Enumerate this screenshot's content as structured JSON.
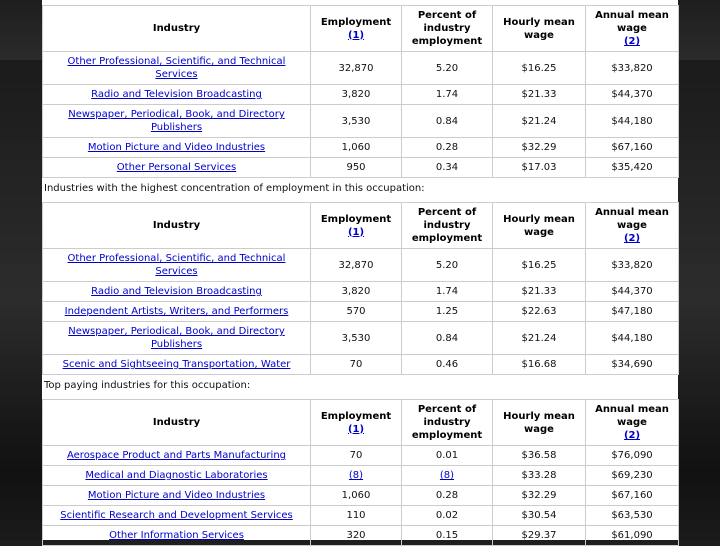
{
  "tables": [
    {
      "headers": [
        {
          "label": "Industry"
        },
        {
          "label": "Employment",
          "note": "(1)"
        },
        {
          "label": "Percent of industry employment"
        },
        {
          "label": "Hourly mean wage"
        },
        {
          "label": "Annual mean wage",
          "note": "(2)"
        }
      ],
      "rows": [
        [
          "Other Professional, Scientific, and Technical Services",
          "32,870",
          "5.20",
          "$16.25",
          "$33,820"
        ],
        [
          "Radio and Television Broadcasting",
          "3,820",
          "1.74",
          "$21.33",
          "$44,370"
        ],
        [
          "Newspaper, Periodical, Book, and Directory Publishers",
          "3,530",
          "0.84",
          "$21.24",
          "$44,180"
        ],
        [
          "Motion Picture and Video Industries",
          "1,060",
          "0.28",
          "$32.29",
          "$67,160"
        ],
        [
          "Other Personal Services",
          "950",
          "0.34",
          "$17.03",
          "$35,420"
        ]
      ]
    },
    {
      "caption": "Industries with the highest concentration of employment in this occupation:",
      "headers": [
        {
          "label": "Industry"
        },
        {
          "label": "Employment",
          "note": "(1)"
        },
        {
          "label": "Percent of industry employment"
        },
        {
          "label": "Hourly mean wage"
        },
        {
          "label": "Annual mean wage",
          "note": "(2)"
        }
      ],
      "rows": [
        [
          "Other Professional, Scientific, and Technical Services",
          "32,870",
          "5.20",
          "$16.25",
          "$33,820"
        ],
        [
          "Radio and Television Broadcasting",
          "3,820",
          "1.74",
          "$21.33",
          "$44,370"
        ],
        [
          "Independent Artists, Writers, and Performers",
          "570",
          "1.25",
          "$22.63",
          "$47,180"
        ],
        [
          "Newspaper, Periodical, Book, and Directory Publishers",
          "3,530",
          "0.84",
          "$21.24",
          "$44,180"
        ],
        [
          "Scenic and Sightseeing Transportation, Water",
          "70",
          "0.46",
          "$16.68",
          "$34,690"
        ]
      ]
    },
    {
      "caption": "Top paying industries for this occupation:",
      "headers": [
        {
          "label": "Industry"
        },
        {
          "label": "Employment",
          "note": "(1)"
        },
        {
          "label": "Percent of industry employment"
        },
        {
          "label": "Hourly mean wage"
        },
        {
          "label": "Annual mean wage",
          "note": "(2)"
        }
      ],
      "rows": [
        [
          "Aerospace Product and Parts Manufacturing",
          "70",
          "0.01",
          "$36.58",
          "$76,090"
        ],
        [
          "Medical and Diagnostic Laboratories",
          "(8)",
          "(8)",
          "$33.28",
          "$69,230"
        ],
        [
          "Motion Picture and Video Industries",
          "1,060",
          "0.28",
          "$32.29",
          "$67,160"
        ],
        [
          "Scientific Research and Development Services",
          "110",
          "0.02",
          "$30.54",
          "$63,530"
        ],
        [
          "Other Information Services",
          "320",
          "0.15",
          "$29.37",
          "$61,090"
        ]
      ]
    }
  ]
}
